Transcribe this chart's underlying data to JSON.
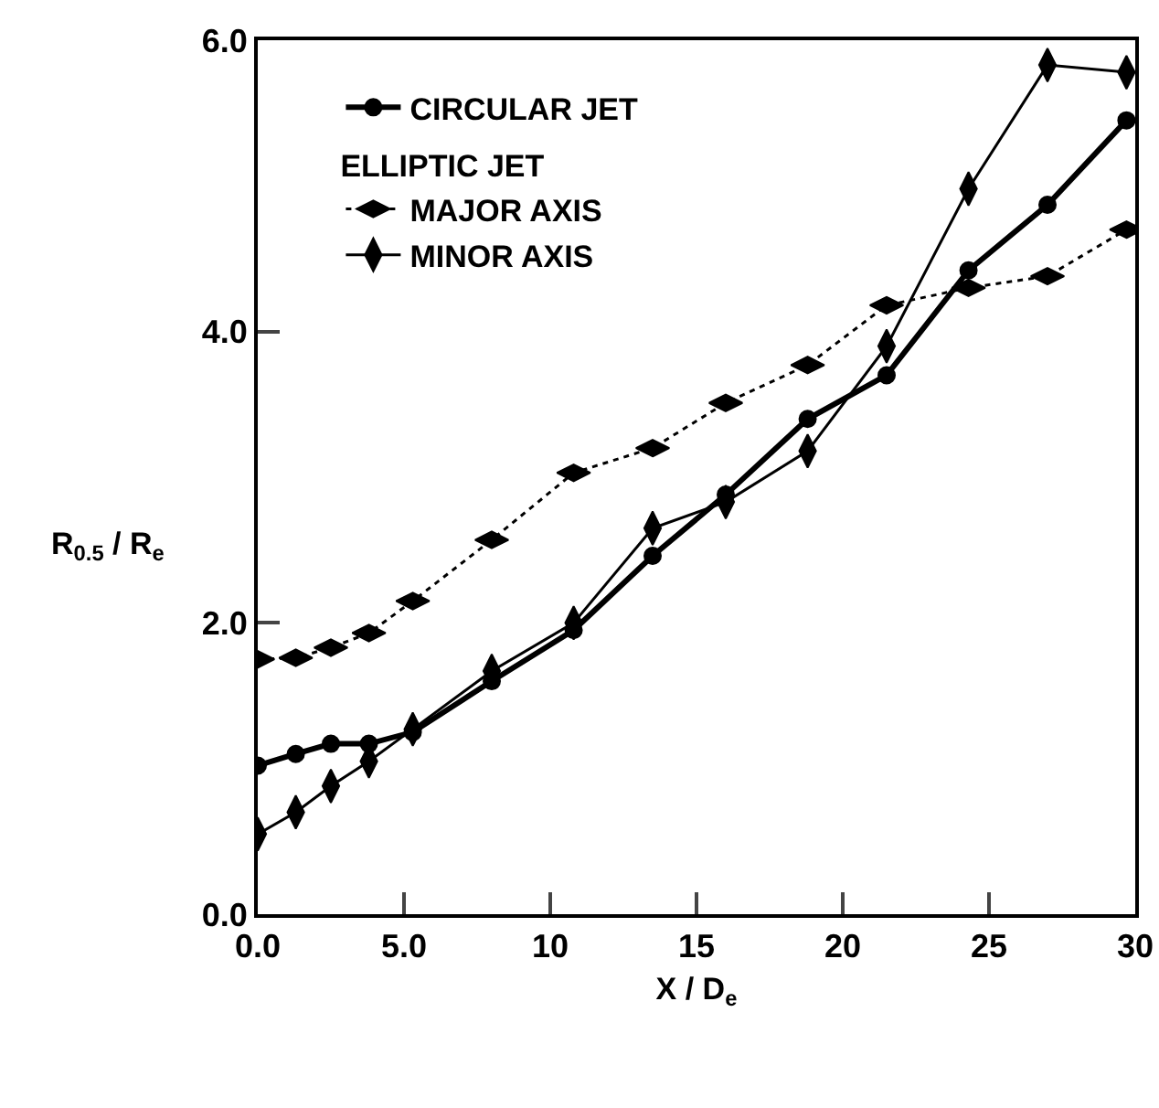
{
  "chart_data": {
    "type": "line",
    "xlabel": "X / D$_{e}$",
    "ylabel": "R$_{0.5}$ / R$_{e}$",
    "legend_title": "ELLIPTIC JET",
    "x": [
      0,
      1.3,
      2.5,
      3.8,
      5.3,
      8,
      10.8,
      13.5,
      16,
      18.8,
      21.5,
      24.3,
      27,
      29.7
    ],
    "series": [
      {
        "name": "CIRCULAR JET",
        "color": "#000000",
        "marker": "circle",
        "line_style": "solid",
        "values": [
          1.02,
          1.1,
          1.17,
          1.17,
          1.25,
          1.6,
          1.95,
          2.46,
          2.88,
          3.4,
          3.7,
          4.42,
          4.87,
          5.45
        ]
      },
      {
        "name": "MAJOR AXIS",
        "color": "#000000",
        "marker": "diamond",
        "line_style": "dotted",
        "values": [
          1.75,
          1.76,
          1.83,
          1.93,
          2.15,
          2.57,
          3.03,
          3.2,
          3.51,
          3.77,
          4.18,
          4.3,
          4.38,
          4.7
        ]
      },
      {
        "name": "MINOR AXIS",
        "color": "#000000",
        "marker": "diamond",
        "line_style": "solid",
        "values": [
          0.55,
          0.7,
          0.88,
          1.05,
          1.27,
          1.67,
          2.0,
          2.65,
          2.83,
          3.18,
          3.9,
          4.98,
          5.83,
          5.78
        ]
      }
    ],
    "xlim": [
      0,
      30
    ],
    "ylim": [
      0,
      6
    ],
    "xticks": [
      {
        "value": 0,
        "label": "0.0"
      },
      {
        "value": 5,
        "label": "5.0"
      },
      10,
      15,
      20,
      25,
      30
    ],
    "yticks": [
      {
        "value": 0,
        "label": "0.0"
      },
      {
        "value": 2,
        "label": "2.0"
      },
      {
        "value": 4,
        "label": "4.0"
      },
      {
        "value": 6,
        "label": "6.0"
      }
    ],
    "grid": false,
    "legend": "top left"
  }
}
